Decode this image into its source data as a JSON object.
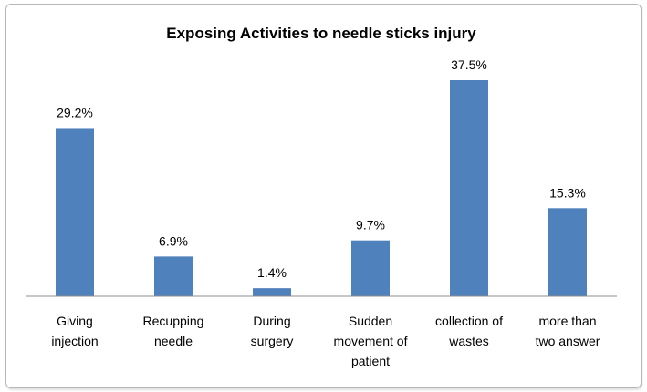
{
  "chart_data": {
    "type": "bar",
    "title": "Exposing Activities to needle sticks injury",
    "xlabel": "",
    "ylabel": "",
    "ylim": [
      0,
      40
    ],
    "grid": false,
    "legend": "none",
    "bar_color": "#4F81BD",
    "categories": [
      [
        "Giving",
        "injection"
      ],
      [
        "Recupping",
        "needle"
      ],
      [
        "During",
        "surgery"
      ],
      [
        "Sudden",
        "movement of",
        "patient"
      ],
      [
        "collection of",
        "wastes"
      ],
      [
        "more than",
        "two answer"
      ]
    ],
    "values": [
      29.2,
      6.9,
      1.4,
      9.7,
      37.5,
      15.3
    ],
    "data_labels": [
      "29.2%",
      "6.9%",
      "1.4%",
      "9.7%",
      "37.5%",
      "15.3%"
    ]
  }
}
